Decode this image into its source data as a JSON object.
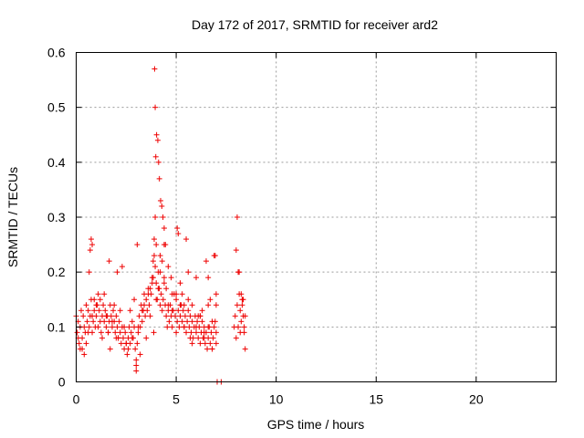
{
  "chart_data": {
    "type": "scatter",
    "title": "Day 172 of 2017, SRMTID for receiver ard2",
    "xlabel": "GPS time / hours",
    "ylabel": "SRMTID / TECUs",
    "xlim": [
      0,
      24
    ],
    "ylim": [
      0,
      0.6
    ],
    "xticks": [
      0,
      5,
      10,
      15,
      20
    ],
    "yticks": [
      0,
      0.1,
      0.2,
      0.3,
      0.4,
      0.5,
      0.6
    ],
    "xtick_labels": [
      "0",
      "5",
      "10",
      "15",
      "20"
    ],
    "ytick_labels": [
      "0",
      "0.1",
      "0.2",
      "0.3",
      "0.4",
      "0.5",
      "0.6"
    ],
    "grid": true,
    "marker": "+",
    "color": "#ee0000",
    "series": [
      {
        "name": "SRMTID",
        "x": [
          0.0,
          0.05,
          0.1,
          0.15,
          0.2,
          0.25,
          0.3,
          0.35,
          0.4,
          0.45,
          0.5,
          0.55,
          0.6,
          0.65,
          0.7,
          0.75,
          0.8,
          0.85,
          0.9,
          0.95,
          1.0,
          1.05,
          1.1,
          1.15,
          1.2,
          1.25,
          1.3,
          1.35,
          1.4,
          1.45,
          1.5,
          1.55,
          1.6,
          1.65,
          1.7,
          1.75,
          1.8,
          1.85,
          1.9,
          1.95,
          2.0,
          2.05,
          2.1,
          2.15,
          2.2,
          2.25,
          2.3,
          2.35,
          2.4,
          2.45,
          2.5,
          2.55,
          2.6,
          2.65,
          2.7,
          2.75,
          2.8,
          2.85,
          2.9,
          2.95,
          3.0,
          3.05,
          3.1,
          3.15,
          3.2,
          3.25,
          3.3,
          3.35,
          3.4,
          3.45,
          3.5,
          3.55,
          3.6,
          3.65,
          3.7,
          3.75,
          3.8,
          3.85,
          3.9,
          3.95,
          4.0,
          4.05,
          4.1,
          4.15,
          4.2,
          4.25,
          4.3,
          4.35,
          4.4,
          4.45,
          4.5,
          4.55,
          4.6,
          4.65,
          4.7,
          4.75,
          4.8,
          4.85,
          4.9,
          4.95,
          5.0,
          5.05,
          5.1,
          5.15,
          5.2,
          5.25,
          5.3,
          5.35,
          5.4,
          5.45,
          5.5,
          5.55,
          5.6,
          5.65,
          5.7,
          5.75,
          5.8,
          5.85,
          5.9,
          5.95,
          6.0,
          6.05,
          6.1,
          6.15,
          6.2,
          6.25,
          6.3,
          6.35,
          6.4,
          6.45,
          6.5,
          6.55,
          6.6,
          6.65,
          6.7,
          6.75,
          6.8,
          6.85,
          6.9,
          6.95,
          7.0,
          7.05,
          7.25,
          7.9,
          7.95,
          8.0,
          8.05,
          8.1,
          8.15,
          8.2,
          8.25,
          8.3,
          8.35,
          8.4,
          8.45,
          0.1,
          0.3,
          0.5,
          0.65,
          0.7,
          0.9,
          1.1,
          1.3,
          1.5,
          1.7,
          1.9,
          2.1,
          2.3,
          2.5,
          2.7,
          2.9,
          3.1,
          3.3,
          3.5,
          3.7,
          3.85,
          3.9,
          3.95,
          4.0,
          4.1,
          4.2,
          4.3,
          4.4,
          4.5,
          4.6,
          4.8,
          5.0,
          5.2,
          5.4,
          5.6,
          5.8,
          6.0,
          6.2,
          6.4,
          6.6,
          6.8,
          7.0,
          8.0,
          8.1,
          8.2,
          8.3,
          8.4,
          0.2,
          0.4,
          0.6,
          0.8,
          1.0,
          1.2,
          1.4,
          1.6,
          1.8,
          2.0,
          2.2,
          2.4,
          2.6,
          2.8,
          3.0,
          3.2,
          3.4,
          3.6,
          3.8,
          4.0,
          4.2,
          4.4,
          4.6,
          4.8,
          5.0,
          5.2,
          5.4,
          5.6,
          5.8,
          6.0,
          6.2,
          6.4,
          6.6,
          6.8,
          7.0,
          3.92,
          3.95,
          3.98,
          4.02,
          4.08,
          4.12,
          4.16,
          4.22,
          4.28,
          4.34,
          4.4,
          4.46,
          5.05,
          5.1,
          5.5,
          6.95,
          8.05,
          8.15,
          0.75,
          0.8,
          1.65,
          2.05,
          2.1,
          3.0,
          3.05,
          6.5,
          6.6,
          6.7,
          3.88,
          4.75,
          5.3,
          5.7,
          6.1,
          6.3,
          6.9,
          7.0,
          8.25,
          8.35,
          8.45
        ],
        "y": [
          0.12,
          0.09,
          0.11,
          0.07,
          0.1,
          0.13,
          0.08,
          0.12,
          0.1,
          0.09,
          0.14,
          0.11,
          0.13,
          0.1,
          0.12,
          0.15,
          0.09,
          0.11,
          0.13,
          0.1,
          0.12,
          0.14,
          0.1,
          0.13,
          0.11,
          0.09,
          0.12,
          0.14,
          0.11,
          0.13,
          0.1,
          0.12,
          0.09,
          0.11,
          0.14,
          0.12,
          0.1,
          0.13,
          0.11,
          0.09,
          0.12,
          0.1,
          0.08,
          0.11,
          0.09,
          0.07,
          0.1,
          0.08,
          0.06,
          0.09,
          0.07,
          0.05,
          0.08,
          0.1,
          0.07,
          0.09,
          0.11,
          0.08,
          0.1,
          0.06,
          0.04,
          0.07,
          0.09,
          0.12,
          0.1,
          0.14,
          0.11,
          0.13,
          0.16,
          0.12,
          0.15,
          0.13,
          0.17,
          0.14,
          0.12,
          0.16,
          0.19,
          0.22,
          0.26,
          0.21,
          0.18,
          0.15,
          0.2,
          0.17,
          0.14,
          0.16,
          0.13,
          0.15,
          0.18,
          0.14,
          0.12,
          0.1,
          0.13,
          0.11,
          0.14,
          0.12,
          0.1,
          0.13,
          0.16,
          0.12,
          0.15,
          0.11,
          0.13,
          0.1,
          0.12,
          0.14,
          0.11,
          0.13,
          0.1,
          0.12,
          0.09,
          0.11,
          0.13,
          0.1,
          0.12,
          0.09,
          0.11,
          0.08,
          0.1,
          0.12,
          0.09,
          0.11,
          0.08,
          0.1,
          0.07,
          0.09,
          0.11,
          0.08,
          0.1,
          0.07,
          0.09,
          0.06,
          0.08,
          0.1,
          0.07,
          0.09,
          0.06,
          0.08,
          0.1,
          0.11,
          0.09,
          0.0,
          0.0,
          0.1,
          0.12,
          0.08,
          0.14,
          0.1,
          0.16,
          0.13,
          0.11,
          0.15,
          0.12,
          0.09,
          0.06,
          0.08,
          0.06,
          0.07,
          0.2,
          0.24,
          0.15,
          0.16,
          0.08,
          0.12,
          0.06,
          0.14,
          0.08,
          0.21,
          0.07,
          0.13,
          0.15,
          0.1,
          0.13,
          0.08,
          0.17,
          0.19,
          0.23,
          0.3,
          0.15,
          0.17,
          0.2,
          0.22,
          0.19,
          0.17,
          0.21,
          0.16,
          0.09,
          0.18,
          0.1,
          0.2,
          0.07,
          0.19,
          0.12,
          0.09,
          0.14,
          0.06,
          0.07,
          0.24,
          0.2,
          0.09,
          0.14,
          0.1,
          0.06,
          0.05,
          0.09,
          0.12,
          0.14,
          0.15,
          0.16,
          0.09,
          0.11,
          0.08,
          0.13,
          0.1,
          0.06,
          0.08,
          0.03,
          0.05,
          0.14,
          0.16,
          0.18,
          0.25,
          0.23,
          0.25,
          0.14,
          0.13,
          0.16,
          0.14,
          0.14,
          0.15,
          0.14,
          0.1,
          0.12,
          0.08,
          0.1,
          0.11,
          0.16,
          0.57,
          0.5,
          0.41,
          0.45,
          0.44,
          0.4,
          0.37,
          0.33,
          0.32,
          0.3,
          0.28,
          0.25,
          0.28,
          0.27,
          0.26,
          0.23,
          0.3,
          0.2,
          0.26,
          0.25,
          0.22,
          0.2,
          0.08,
          0.02,
          0.25,
          0.22,
          0.19,
          0.15,
          0.09,
          0.19,
          0.16,
          0.08,
          0.12,
          0.13,
          0.23,
          0.14,
          0.16,
          0.15,
          0.12
        ]
      }
    ]
  }
}
